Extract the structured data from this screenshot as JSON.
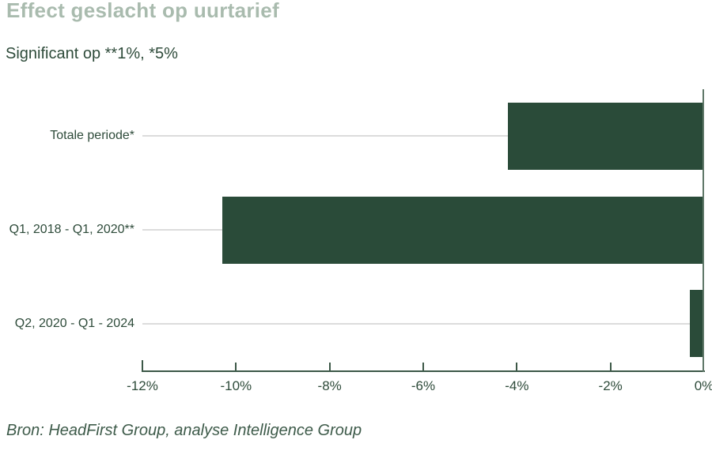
{
  "header": {
    "title": "Effect geslacht op uurtarief",
    "subtitle": "Significant op **1%, *5%"
  },
  "footer": {
    "source": "Bron: HeadFirst Group, analyse Intelligence Group"
  },
  "colors": {
    "bar": "#2a4b39",
    "title_text": "#a9bbae",
    "dark_text": "#2e4b3a",
    "axis": "#3c5847",
    "zero_line": "#5f7768",
    "gridline": "#dcdcdc"
  },
  "chart_data": {
    "type": "bar",
    "orientation": "horizontal",
    "title": "Effect geslacht op uurtarief",
    "subtitle": "Significant op **1%, *5%",
    "categories": [
      "Totale periode*",
      "Q1, 2018 - Q1, 2020**",
      "Q2, 2020 - Q1 - 2024"
    ],
    "values": [
      -4.2,
      -10.3,
      -0.3
    ],
    "unit": "%",
    "xlim": [
      -12,
      0
    ],
    "x_ticks": [
      -12,
      -10,
      -8,
      -6,
      -4,
      -2,
      0
    ],
    "x_tick_labels": [
      "-12%",
      "-10%",
      "-8%",
      "-6%",
      "-4%",
      "-2%",
      "0%"
    ],
    "grid": "category-gridlines",
    "legend": false,
    "bar_color": "#2a4b39",
    "source": "Bron: HeadFirst Group, analyse Intelligence Group"
  }
}
